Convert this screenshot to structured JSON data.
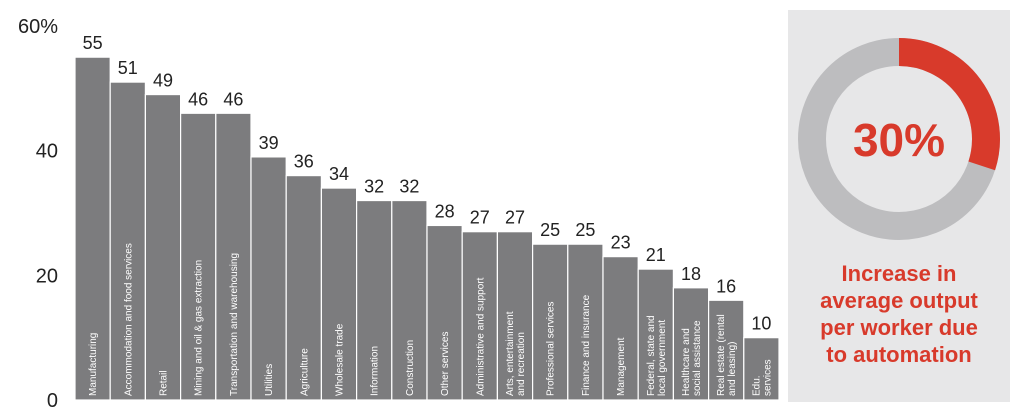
{
  "chart_data": {
    "type": "bar",
    "title": "",
    "xlabel": "",
    "ylabel": "",
    "ylim": [
      0,
      60
    ],
    "yticks": [
      0,
      20,
      40,
      60
    ],
    "ytick_labels": [
      "0",
      "20",
      "40",
      "60%"
    ],
    "grid": false,
    "colors": {
      "bar": "#7c7c7e",
      "bar_edge": "#ffffff"
    },
    "categories": [
      [
        "Manufacturing"
      ],
      [
        "Accommodation and food services"
      ],
      [
        "Retail"
      ],
      [
        "Mining and oil & gas extraction"
      ],
      [
        "Transportation and warehousing"
      ],
      [
        "Utilities"
      ],
      [
        "Agriculture"
      ],
      [
        "Wholesale trade"
      ],
      [
        "Information"
      ],
      [
        "Construction"
      ],
      [
        "Other services"
      ],
      [
        "Administrative and support"
      ],
      [
        "Arts, entertainment",
        "and recreation"
      ],
      [
        "Professional services"
      ],
      [
        "Finance and insurance"
      ],
      [
        "Management"
      ],
      [
        "Federal, state and",
        "local government"
      ],
      [
        "Healthcare and",
        "social assistance"
      ],
      [
        "Real estate (rental",
        "and leasing)"
      ],
      [
        "Edu.",
        "services"
      ]
    ],
    "values": [
      55,
      51,
      49,
      46,
      46,
      39,
      36,
      34,
      32,
      32,
      28,
      27,
      27,
      25,
      25,
      23,
      21,
      18,
      16,
      10
    ]
  },
  "donut": {
    "value": 30,
    "label": "30%",
    "caption": "Increase in\naverage output\nper worker due\nto automation",
    "colors": {
      "highlight": "#d83a2b",
      "track": "#bdbdbf",
      "text": "#d83a2b"
    }
  }
}
